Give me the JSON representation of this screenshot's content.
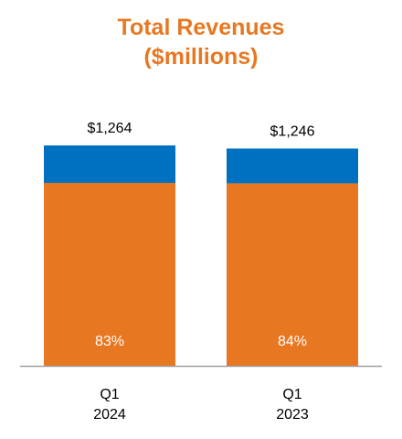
{
  "chart_data": {
    "type": "bar",
    "stacked": true,
    "title": "Total Revenues",
    "subtitle": "($millions)",
    "categories": [
      {
        "line1": "Q1",
        "line2": "2024"
      },
      {
        "line1": "Q1",
        "line2": "2023"
      }
    ],
    "totals": [
      1264,
      1246
    ],
    "total_labels": [
      "$1,264",
      "$1,246"
    ],
    "series": [
      {
        "values": [
          1049.1,
          1046.6
        ],
        "segment_labels": [
          "83%",
          "84%"
        ],
        "color": "#e87722"
      },
      {
        "values": [
          214.9,
          199.4
        ],
        "color": "#0070c0"
      }
    ],
    "ylim": [
      0,
      1264
    ],
    "grid": false,
    "legend": "none",
    "colors": {
      "title": "#e87722",
      "axis": "#a0a0a0",
      "text": "#000000",
      "segment_label": "#ffffff"
    }
  }
}
